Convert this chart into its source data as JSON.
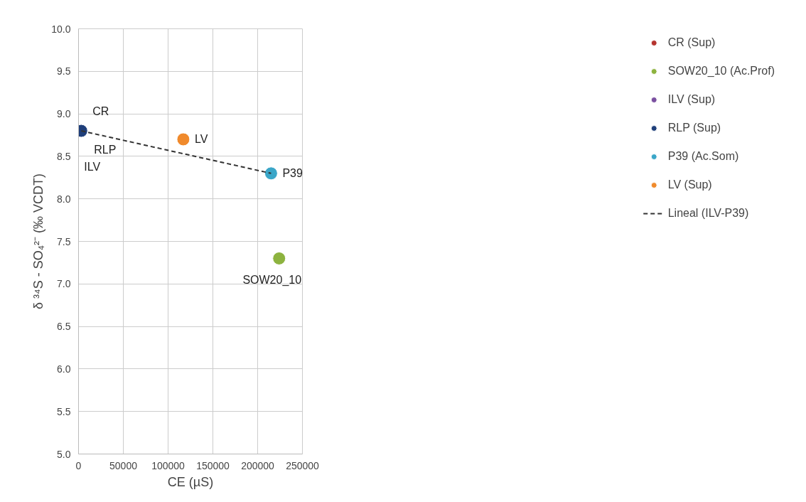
{
  "chart_data": {
    "type": "scatter",
    "xlabel": "CE (µS)",
    "ylabel": "δ ³⁴S - SO₄²⁻ (‰ VCDT)",
    "xlim": [
      0,
      250000
    ],
    "xticks": [
      0,
      50000,
      100000,
      150000,
      200000,
      250000
    ],
    "ylim": [
      5.0,
      10.0
    ],
    "yticks": [
      {
        "value": 5,
        "label": "5.0"
      },
      5.5,
      {
        "value": 6,
        "label": "6.0"
      },
      6.5,
      {
        "value": 7,
        "label": "7.0"
      },
      7.5,
      {
        "value": 8,
        "label": "8.0"
      },
      8.5,
      {
        "value": 9,
        "label": "9.0"
      },
      9.5,
      {
        "value": 10,
        "label": "10.0"
      }
    ],
    "grid": true,
    "legend": "right",
    "marker": "circle",
    "series": [
      {
        "name": "CR (Sup)",
        "color": "#b5332e",
        "x": [
          null
        ],
        "values": [
          null
        ]
      },
      {
        "name": "SOW20_10 (Ac.Prof)",
        "color": "#8db33f",
        "x": [
          224000
        ],
        "values": [
          7.3
        ]
      },
      {
        "name": "ILV (Sup)",
        "color": "#7a4fa0",
        "x": [
          null
        ],
        "values": [
          null
        ]
      },
      {
        "name": "RLP (Sup)",
        "color": "#1f3f7a",
        "x": [
          3000
        ],
        "values": [
          8.8
        ]
      },
      {
        "name": "P39 (Ac.Som)",
        "color": "#3aa6c8",
        "x": [
          215000
        ],
        "values": [
          8.3
        ]
      },
      {
        "name": "LV (Sup)",
        "color": "#f08a2c",
        "x": [
          117000
        ],
        "values": [
          8.7
        ]
      },
      {
        "name": "Lineal (ILV-P39)",
        "type": "line",
        "line_style": "dashed",
        "marker": "none",
        "color": "#333333",
        "x": [
          3000,
          215000
        ],
        "values": [
          8.8,
          8.3
        ]
      }
    ],
    "annotations": [
      {
        "text": "CR",
        "x": 3000,
        "y": 8.8
      },
      {
        "text": "RLP",
        "x": 3000,
        "y": 8.8
      },
      {
        "text": "ILV",
        "x": 3000,
        "y": 8.8
      },
      {
        "text": "LV",
        "x": 117000,
        "y": 8.7
      },
      {
        "text": "P39",
        "x": 215000,
        "y": 8.3
      },
      {
        "text": "SOW20_10",
        "x": 224000,
        "y": 7.3
      }
    ]
  }
}
